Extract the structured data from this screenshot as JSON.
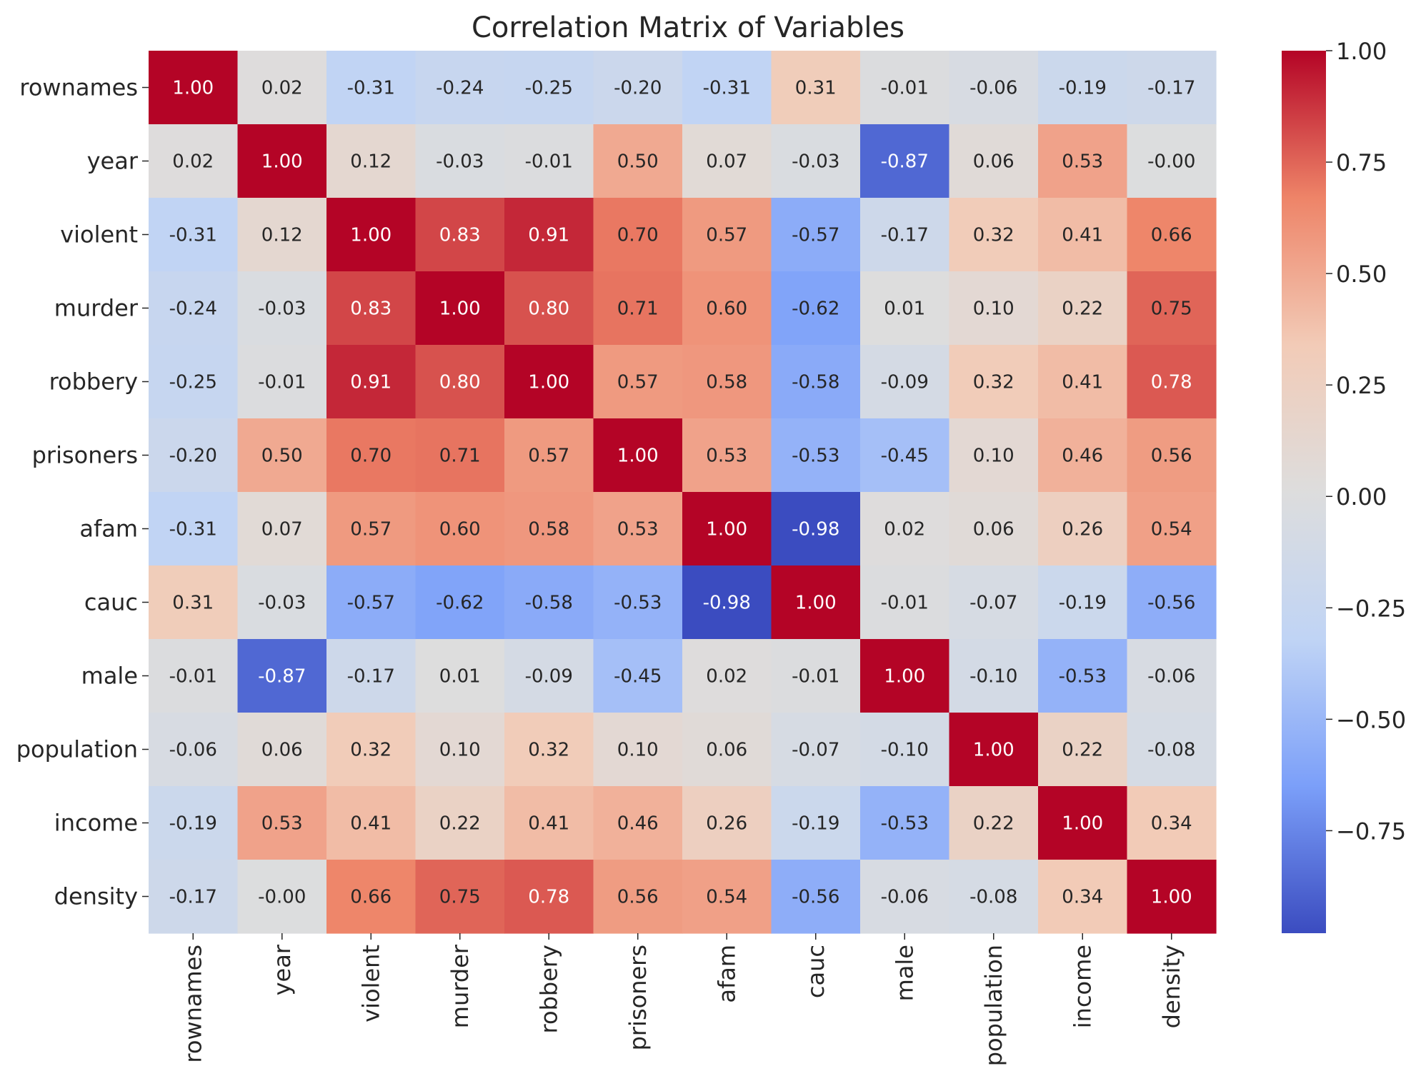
{
  "chart_data": {
    "type": "heatmap",
    "title": "Correlation Matrix of Variables",
    "xlabel": "",
    "ylabel": "",
    "rows": [
      "rownames",
      "year",
      "violent",
      "murder",
      "robbery",
      "prisoners",
      "afam",
      "cauc",
      "male",
      "population",
      "income",
      "density"
    ],
    "columns": [
      "rownames",
      "year",
      "violent",
      "murder",
      "robbery",
      "prisoners",
      "afam",
      "cauc",
      "male",
      "population",
      "income",
      "density"
    ],
    "values": [
      [
        1.0,
        0.02,
        -0.31,
        -0.24,
        -0.25,
        -0.2,
        -0.31,
        0.31,
        -0.01,
        -0.06,
        -0.19,
        -0.17
      ],
      [
        0.02,
        1.0,
        0.12,
        -0.03,
        -0.01,
        0.5,
        0.07,
        -0.03,
        -0.87,
        0.06,
        0.53,
        -0.0
      ],
      [
        -0.31,
        0.12,
        1.0,
        0.83,
        0.91,
        0.7,
        0.57,
        -0.57,
        -0.17,
        0.32,
        0.41,
        0.66
      ],
      [
        -0.24,
        -0.03,
        0.83,
        1.0,
        0.8,
        0.71,
        0.6,
        -0.62,
        0.01,
        0.1,
        0.22,
        0.75
      ],
      [
        -0.25,
        -0.01,
        0.91,
        0.8,
        1.0,
        0.57,
        0.58,
        -0.58,
        -0.09,
        0.32,
        0.41,
        0.78
      ],
      [
        -0.2,
        0.5,
        0.7,
        0.71,
        0.57,
        1.0,
        0.53,
        -0.53,
        -0.45,
        0.1,
        0.46,
        0.56
      ],
      [
        -0.31,
        0.07,
        0.57,
        0.6,
        0.58,
        0.53,
        1.0,
        -0.98,
        0.02,
        0.06,
        0.26,
        0.54
      ],
      [
        0.31,
        -0.03,
        -0.57,
        -0.62,
        -0.58,
        -0.53,
        -0.98,
        1.0,
        -0.01,
        -0.07,
        -0.19,
        -0.56
      ],
      [
        -0.01,
        -0.87,
        -0.17,
        0.01,
        -0.09,
        -0.45,
        0.02,
        -0.01,
        1.0,
        -0.1,
        -0.53,
        -0.06
      ],
      [
        -0.06,
        0.06,
        0.32,
        0.1,
        0.32,
        0.1,
        0.06,
        -0.07,
        -0.1,
        1.0,
        0.22,
        -0.08
      ],
      [
        -0.19,
        0.53,
        0.41,
        0.22,
        0.41,
        0.46,
        0.26,
        -0.19,
        -0.53,
        0.22,
        1.0,
        0.34
      ],
      [
        -0.17,
        -0.0,
        0.66,
        0.75,
        0.78,
        0.56,
        0.54,
        -0.56,
        -0.06,
        -0.08,
        0.34,
        1.0
      ]
    ],
    "value_format": "0.00",
    "colormap": "coolwarm",
    "colormap_stops": [
      "#3b4cc0",
      "#7b9ff9",
      "#c0d4f5",
      "#dddddd",
      "#f2cbb7",
      "#ee8468",
      "#b40426"
    ],
    "color_range": [
      -0.98,
      1.0
    ],
    "colorbar": {
      "ticks": [
        1.0,
        0.75,
        0.5,
        0.25,
        0.0,
        -0.25,
        -0.5,
        -0.75
      ],
      "tick_labels": [
        "1.00",
        "0.75",
        "0.50",
        "0.25",
        "0.00",
        "−0.25",
        "−0.50",
        "−0.75"
      ],
      "placement": "right"
    }
  }
}
